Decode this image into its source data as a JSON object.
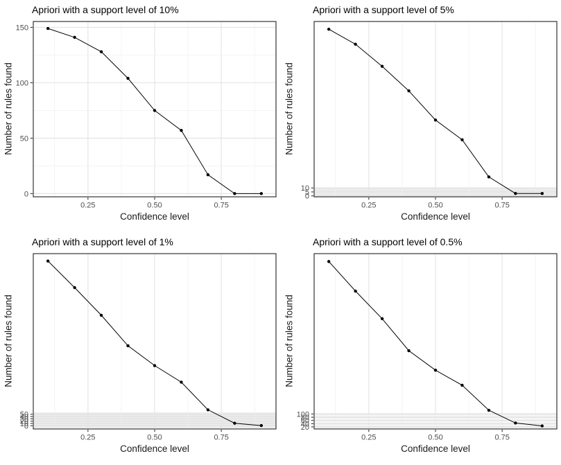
{
  "figure": {
    "background": "#ffffff",
    "grid_layout": "2x2"
  },
  "style": {
    "title_color": "#000000",
    "axis_title_color": "#1a1a1a",
    "tick_label_color": "#4d4d4d",
    "tick_mark_color": "#333333",
    "panel_border_color": "#333333",
    "grid_major_color": "#e5e5e5",
    "grid_minor_color": "#f2f2f2",
    "band_fill_color": "#ebebeb",
    "band_line_color": "#e0e0e0",
    "series_color": "#000000",
    "point_color": "#000000"
  },
  "chart_data": [
    {
      "type": "line",
      "title": "Apriori with a support level of 10%",
      "xlabel": "Confidence level",
      "ylabel": "Number of rules found",
      "x": [
        0.1,
        0.2,
        0.3,
        0.4,
        0.5,
        0.6,
        0.7,
        0.8,
        0.9
      ],
      "values": [
        149,
        141,
        128,
        104,
        75,
        57,
        17,
        0,
        0
      ],
      "xlim": [
        0.045,
        0.955
      ],
      "ylim": [
        -2.9,
        155.3
      ],
      "x_tick_values": [
        0.25,
        0.5,
        0.75
      ],
      "x_tick_labels": [
        "0.25",
        "0.50",
        "0.75"
      ],
      "x_major": [
        0.25,
        0.5,
        0.75
      ],
      "x_minor": [
        0.125,
        0.375,
        0.625,
        0.875
      ],
      "y_tick_values": [
        0,
        50,
        100,
        150
      ],
      "y_tick_labels": [
        "0",
        "50",
        "100",
        "150"
      ],
      "y_major": [
        0,
        50,
        100,
        150
      ],
      "y_minor": [
        25,
        75,
        125
      ],
      "band": null,
      "grid": "on",
      "legend": "none"
    },
    {
      "type": "line",
      "title": "Apriori with a support level of 5%",
      "xlabel": "Confidence level",
      "ylabel": "Number of rules found",
      "x": [
        0.1,
        0.2,
        0.3,
        0.4,
        0.5,
        0.6,
        0.7,
        0.8,
        0.9
      ],
      "values": [
        211,
        192,
        164,
        133,
        96,
        71,
        24,
        3,
        3
      ],
      "xlim": [
        0.045,
        0.955
      ],
      "ylim": [
        -1.2,
        220.8
      ],
      "x_tick_values": [
        0.25,
        0.5,
        0.75
      ],
      "x_tick_labels": [
        "0.25",
        "0.50",
        "0.75"
      ],
      "x_major": [
        0.25,
        0.5,
        0.75
      ],
      "x_minor": [
        0.125,
        0.375,
        0.625,
        0.875
      ],
      "y_tick_values": [
        0,
        5,
        10
      ],
      "y_tick_labels": [
        "0",
        "5",
        "10"
      ],
      "y_major": [
        0,
        5,
        10
      ],
      "y_major_width": 1,
      "y_minor": [],
      "band": {
        "from": -0.8,
        "to": 10.7
      },
      "grid": "on",
      "legend": "none"
    },
    {
      "type": "line",
      "title": "Apriori with a support level of 1%",
      "xlabel": "Confidence level",
      "ylabel": "Number of rules found",
      "x": [
        0.1,
        0.2,
        0.3,
        0.4,
        0.5,
        0.6,
        0.7,
        0.8,
        0.9
      ],
      "values": [
        714,
        599,
        479,
        347,
        261,
        189,
        69,
        11,
        1
      ],
      "xlim": [
        0.045,
        0.955
      ],
      "ylim": [
        -13.8,
        746.2
      ],
      "x_tick_values": [
        0.25,
        0.5,
        0.75
      ],
      "x_tick_labels": [
        "0.25",
        "0.50",
        "0.75"
      ],
      "x_major": [
        0.25,
        0.5,
        0.75
      ],
      "x_minor": [
        0.125,
        0.375,
        0.625,
        0.875
      ],
      "y_tick_values": [
        0,
        10,
        20,
        30,
        40,
        50
      ],
      "y_tick_labels": [
        "0",
        "10",
        "20",
        "30",
        "40",
        "50"
      ],
      "y_major": [
        0,
        10,
        20,
        30,
        40,
        50
      ],
      "y_major_width": 1,
      "y_minor": [],
      "band": {
        "from": -10,
        "to": 58
      },
      "grid": "on",
      "legend": "none"
    },
    {
      "type": "line",
      "title": "Apriori with a support level of 0.5%",
      "xlabel": "Confidence level",
      "ylabel": "Number of rules found",
      "x": [
        0.1,
        0.2,
        0.3,
        0.4,
        0.5,
        0.6,
        0.7,
        0.8,
        0.9
      ],
      "values": [
        1044,
        861,
        690,
        492,
        371,
        278,
        123,
        44,
        26
      ],
      "xlim": [
        0.045,
        0.955
      ],
      "ylim": [
        7.2,
        1092.8
      ],
      "x_tick_values": [
        0.25,
        0.5,
        0.75
      ],
      "x_tick_labels": [
        "0.25",
        "0.50",
        "0.75"
      ],
      "x_major": [
        0.25,
        0.5,
        0.75
      ],
      "x_minor": [
        0.125,
        0.375,
        0.625,
        0.875
      ],
      "y_tick_values": [
        20,
        40,
        60,
        80,
        100
      ],
      "y_tick_labels": [
        "20",
        "40",
        "60",
        "80",
        "100"
      ],
      "y_major": [
        20,
        40,
        60,
        80,
        100
      ],
      "y_major_width": 2.2,
      "y_minor": [
        10,
        30,
        50,
        70,
        90
      ],
      "stripes": true,
      "band": null,
      "grid": "on",
      "legend": "none"
    }
  ]
}
